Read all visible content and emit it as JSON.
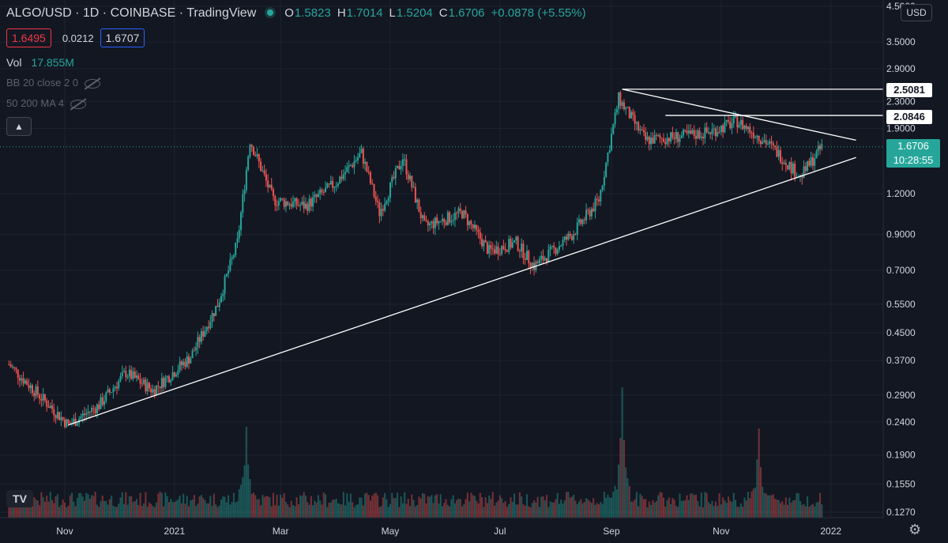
{
  "header": {
    "symbol_line": "ALGO/USD · 1D · COINBASE · TradingView",
    "symbol": "ALGO/USD",
    "interval": "1D",
    "exchange": "COINBASE",
    "source": "TradingView",
    "open_label": "O",
    "open": "1.5823",
    "high_label": "H",
    "high": "1.7014",
    "low_label": "L",
    "low": "1.5204",
    "close_label": "C",
    "close": "1.6706",
    "change": "+0.0878 (+5.55%)"
  },
  "quote": {
    "bid": "1.6495",
    "spread": "0.0212",
    "ask": "1.6707"
  },
  "volume": {
    "label": "Vol",
    "value": "17.855M"
  },
  "indicators": [
    {
      "label": "BB 20 close 2 0"
    },
    {
      "label": "50 200 MA 4"
    }
  ],
  "controls": {
    "currency": "USD",
    "collapse_icon": "chevron-up-icon",
    "settings_icon": "gear-icon",
    "logo": "TV"
  },
  "colors": {
    "up": "#26a69a",
    "down": "#ef5350",
    "background": "#131722",
    "line": "#ffffff",
    "grid": "#1f2331"
  },
  "chart_data": {
    "type": "candlestick",
    "symbol": "ALGO/USD",
    "y_scale": "log",
    "y_ticks": [
      "0.1270",
      "0.1550",
      "0.1900",
      "0.2400",
      "0.2900",
      "0.3700",
      "0.4500",
      "0.5500",
      "0.7000",
      "0.9000",
      "1.2000",
      "1.9000",
      "2.3000",
      "2.9000",
      "3.5000",
      "4.5000"
    ],
    "x_ticks": [
      "Nov",
      "2021",
      "Mar",
      "May",
      "Jul",
      "Sep",
      "Nov",
      "2022"
    ],
    "level_labels": [
      "2.5081",
      "2.0846"
    ],
    "last_price": "1.6706",
    "countdown": "10:28:55",
    "price_path": [
      [
        "2020-10-01",
        0.36
      ],
      [
        "2020-10-15",
        0.3
      ],
      [
        "2020-11-03",
        0.235
      ],
      [
        "2020-11-20",
        0.27
      ],
      [
        "2020-12-05",
        0.34
      ],
      [
        "2020-12-20",
        0.3
      ],
      [
        "2021-01-10",
        0.38
      ],
      [
        "2021-01-25",
        0.55
      ],
      [
        "2021-02-05",
        0.85
      ],
      [
        "2021-02-12",
        1.75
      ],
      [
        "2021-02-25",
        1.15
      ],
      [
        "2021-03-15",
        1.1
      ],
      [
        "2021-04-01",
        1.3
      ],
      [
        "2021-04-15",
        1.6
      ],
      [
        "2021-04-25",
        1.05
      ],
      [
        "2021-05-08",
        1.55
      ],
      [
        "2021-05-20",
        0.95
      ],
      [
        "2021-06-10",
        1.05
      ],
      [
        "2021-06-25",
        0.8
      ],
      [
        "2021-07-10",
        0.85
      ],
      [
        "2021-07-20",
        0.72
      ],
      [
        "2021-08-10",
        0.9
      ],
      [
        "2021-08-25",
        1.15
      ],
      [
        "2021-09-05",
        2.35
      ],
      [
        "2021-09-20",
        1.75
      ],
      [
        "2021-10-10",
        1.8
      ],
      [
        "2021-10-25",
        1.85
      ],
      [
        "2021-11-10",
        2.0
      ],
      [
        "2021-11-25",
        1.75
      ],
      [
        "2021-12-05",
        1.55
      ],
      [
        "2021-12-15",
        1.35
      ],
      [
        "2021-12-27",
        1.67
      ]
    ],
    "support_trendline": [
      [
        "2020-11-03",
        0.235
      ],
      [
        "2022-01-15",
        1.55
      ]
    ],
    "resistance_trendline": [
      [
        "2021-09-07",
        2.5081
      ],
      [
        "2022-01-15",
        1.75
      ]
    ],
    "horizontal_levels": [
      {
        "from": "2021-09-07",
        "value": 2.5081
      },
      {
        "from": "2021-10-01",
        "value": 2.0846
      }
    ],
    "volume_spikes": [
      [
        "2021-02-10",
        0.6
      ],
      [
        "2021-09-07",
        1.0
      ],
      [
        "2021-11-22",
        0.55
      ]
    ]
  }
}
